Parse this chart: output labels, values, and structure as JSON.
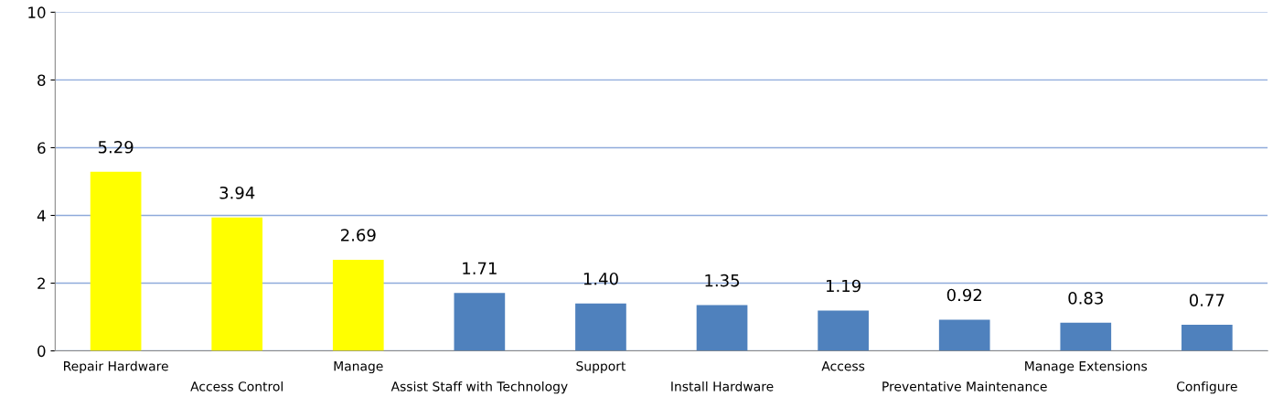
{
  "chart_data": {
    "type": "bar",
    "categories": [
      "Repair Hardware",
      "Access Control",
      "Manage",
      "Assist Staff with Technology",
      "Support",
      "Install Hardware",
      "Access",
      "Preventative Maintenance",
      "Manage Extensions",
      "Configure"
    ],
    "values": [
      5.29,
      3.94,
      2.69,
      1.71,
      1.4,
      1.35,
      1.19,
      0.92,
      0.83,
      0.77
    ],
    "value_labels": [
      "5.29",
      "3.94",
      "2.69",
      "1.71",
      "1.40",
      "1.35",
      "1.19",
      "0.92",
      "0.83",
      "0.77"
    ],
    "colors": [
      "#ffff00",
      "#ffff00",
      "#ffff00",
      "#4f81bd",
      "#4f81bd",
      "#4f81bd",
      "#4f81bd",
      "#4f81bd",
      "#4f81bd",
      "#4f81bd"
    ],
    "ylim": [
      0,
      10
    ],
    "yticks": [
      0,
      2,
      4,
      6,
      8,
      10
    ],
    "grid": "y",
    "legend": false
  }
}
